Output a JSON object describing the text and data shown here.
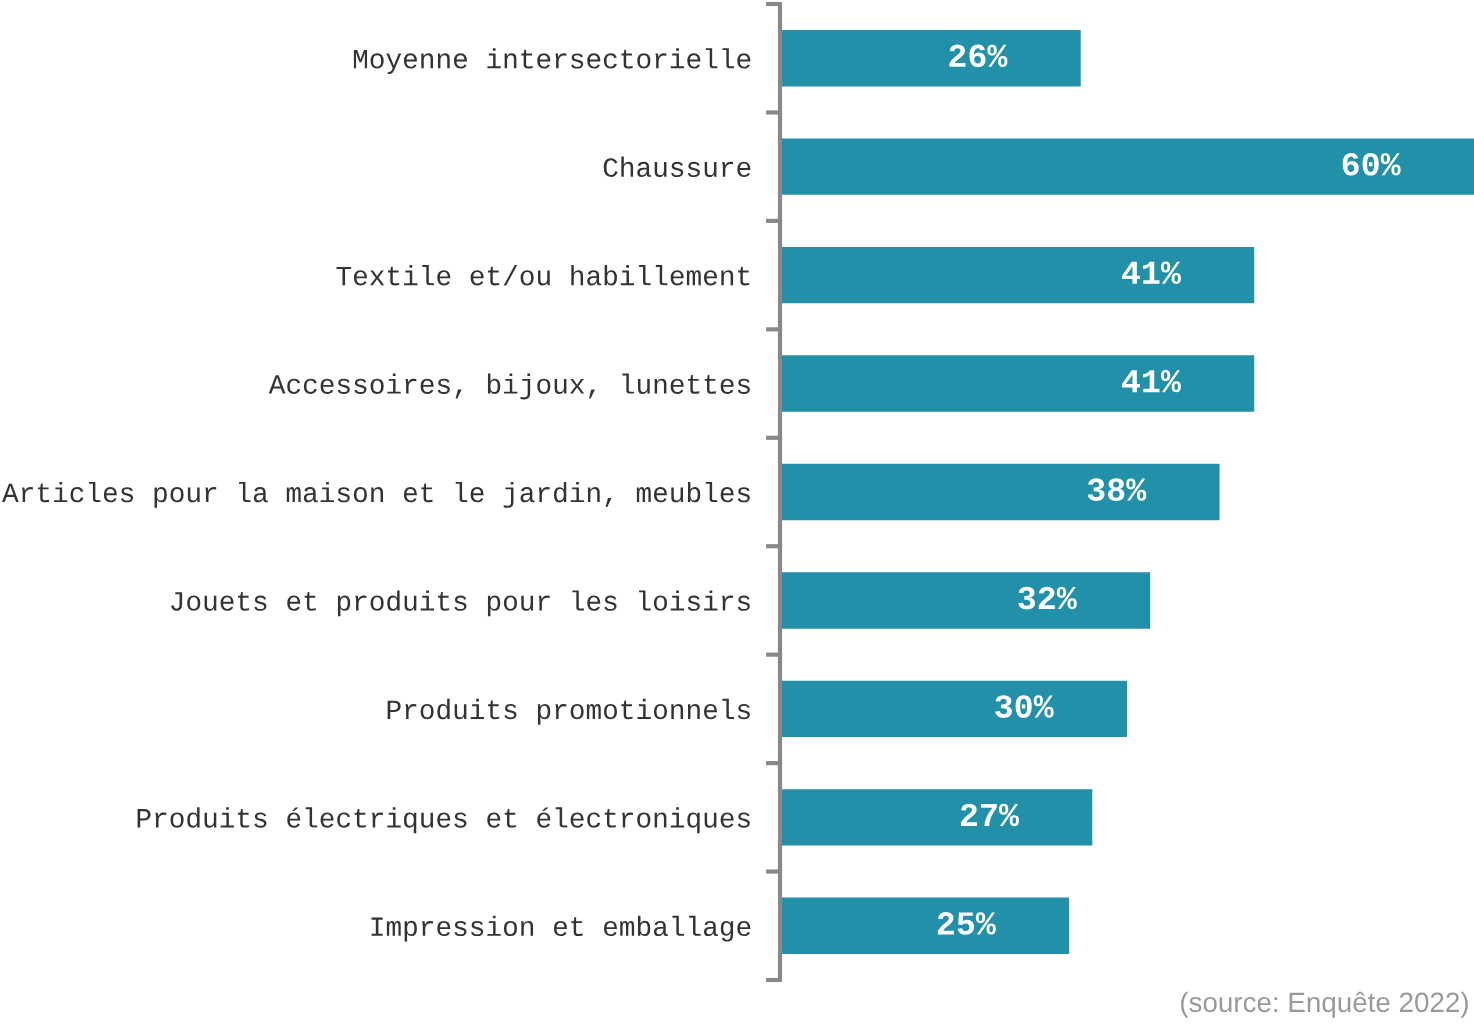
{
  "chart_data": {
    "type": "bar",
    "orientation": "horizontal",
    "categories": [
      "Moyenne intersectorielle",
      "Chaussure",
      "Textile et/ou habillement",
      "Accessoires, bijoux, lunettes",
      "Articles pour la maison et le jardin, meubles",
      "Jouets et produits pour les loisirs",
      "Produits promotionnels",
      "Produits électriques et électroniques",
      "Impression et emballage"
    ],
    "values": [
      26,
      60,
      41,
      41,
      38,
      32,
      30,
      27,
      25
    ],
    "value_labels": [
      "26%",
      "60%",
      "41%",
      "41%",
      "38%",
      "32%",
      "30%",
      "27%",
      "25%"
    ],
    "color": "#2190a8",
    "xlim": [
      0,
      60
    ],
    "tick_labels": "y",
    "grid": false,
    "legend": false,
    "annotations": [
      "(source: Enquête 2022)"
    ]
  }
}
